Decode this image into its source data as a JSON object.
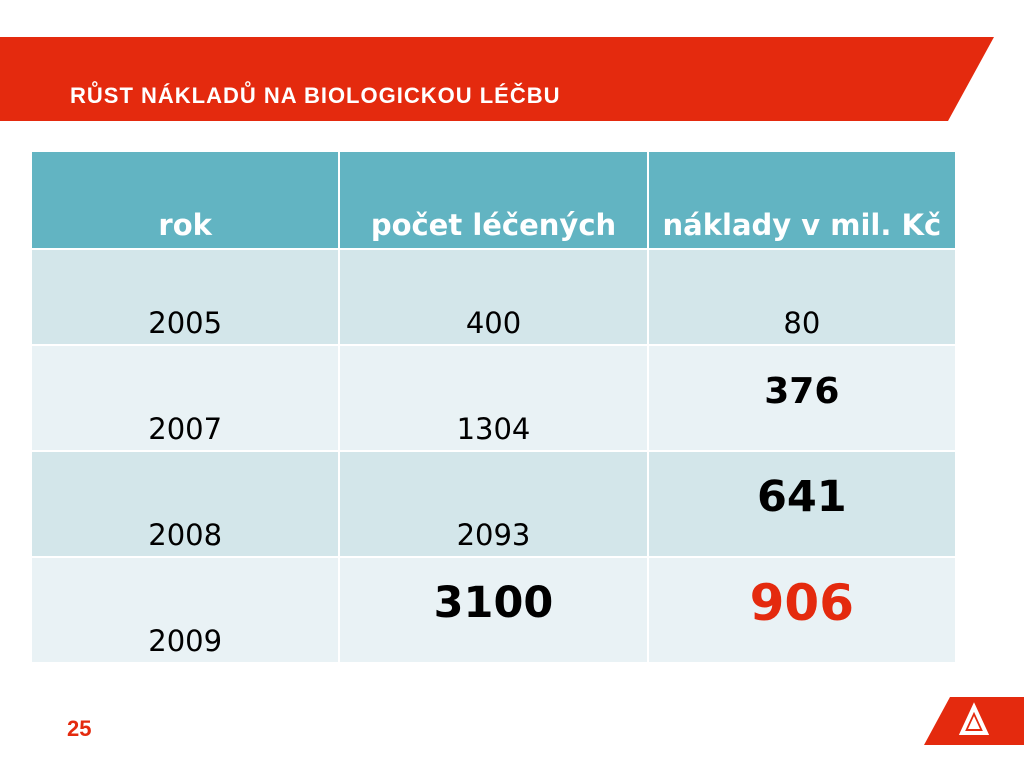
{
  "slide": {
    "title": "RŮST NÁKLADŮ NA BIOLOGICKOU LÉČBU",
    "page_number": "25"
  },
  "table": {
    "headers": [
      "rok",
      "počet léčených",
      "náklady v mil. Kč"
    ],
    "rows": [
      [
        "2005",
        "400",
        "80"
      ],
      [
        "2007",
        "1304",
        "376"
      ],
      [
        "2008",
        "2093",
        "641"
      ],
      [
        "2009",
        "3100",
        "906"
      ]
    ]
  },
  "colors": {
    "accent_red": "#e42a0e",
    "header_teal": "#62b4c2",
    "row_light": "#e9f2f5",
    "row_dark": "#d3e6ea"
  },
  "logo": {
    "icon": "company-logo-icon"
  }
}
